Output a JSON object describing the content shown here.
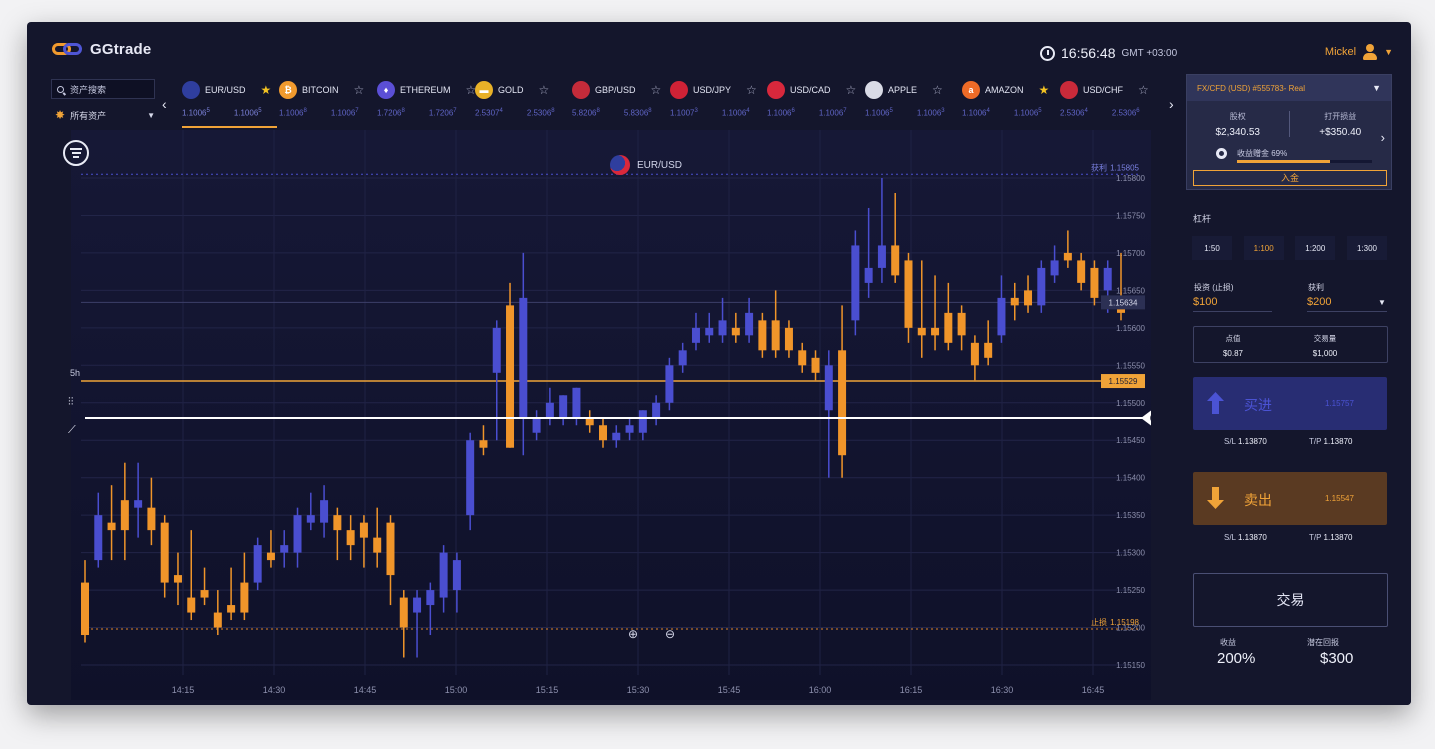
{
  "app": {
    "name": "GGtrade"
  },
  "header": {
    "time": "16:56:48",
    "timezone": "GMT +03:00",
    "username": "Mickel"
  },
  "sidebar": {
    "search_placeholder": "资产搜索",
    "all_assets": "所有资产"
  },
  "tickers": [
    {
      "name": "EUR/USD",
      "icon_color": "#2f3e9e",
      "icon_letter": "",
      "favorite": true,
      "prices": [
        "1.1006",
        "1.1006"
      ],
      "sups": [
        "5",
        "5"
      ],
      "active": true
    },
    {
      "name": "BITCOIN",
      "icon_color": "#f19a2e",
      "icon_letter": "₿",
      "favorite": false,
      "prices": [
        "1.1006",
        "1.1006"
      ],
      "sups": [
        "8",
        "7"
      ]
    },
    {
      "name": "ETHEREUM",
      "icon_color": "#5b4fd6",
      "icon_letter": "♦",
      "favorite": false,
      "prices": [
        "1.7206",
        "1.7206"
      ],
      "sups": [
        "8",
        "7"
      ]
    },
    {
      "name": "GOLD",
      "icon_color": "#e8b128",
      "icon_letter": "▬",
      "favorite": false,
      "prices": [
        "2.5307",
        "2.5306"
      ],
      "sups": [
        "4",
        "8"
      ]
    },
    {
      "name": "GBP/USD",
      "icon_color": "#c42b3a",
      "icon_letter": "",
      "favorite": false,
      "prices": [
        "5.8206",
        "5.8306"
      ],
      "sups": [
        "8",
        "8"
      ]
    },
    {
      "name": "USD/JPY",
      "icon_color": "#cf2236",
      "icon_letter": "",
      "favorite": false,
      "prices": [
        "1.1007",
        "1.1006"
      ],
      "sups": [
        "3",
        "4"
      ]
    },
    {
      "name": "USD/CAD",
      "icon_color": "#d7283c",
      "icon_letter": "",
      "favorite": false,
      "prices": [
        "1.1006",
        "1.1006"
      ],
      "sups": [
        "6",
        "7"
      ]
    },
    {
      "name": "APPLE",
      "icon_color": "#d9dbe6",
      "icon_letter": "",
      "favorite": false,
      "prices": [
        "1.1006",
        "1.1006"
      ],
      "sups": [
        "5",
        "3"
      ]
    },
    {
      "name": "AMAZON",
      "icon_color": "#ee6b27",
      "icon_letter": "a",
      "favorite": true,
      "prices": [
        "1.1006",
        "1.1006"
      ],
      "sups": [
        "4",
        "5"
      ]
    },
    {
      "name": "USD/CHF",
      "icon_color": "#c92a3a",
      "icon_letter": "",
      "favorite": false,
      "prices": [
        "2.5306",
        "2.5306"
      ],
      "sups": [
        "4",
        "6"
      ]
    }
  ],
  "chart": {
    "symbol": "EUR/USD",
    "timeframe": "5h",
    "take_profit_label": "获利",
    "take_profit_value": "1.15805",
    "stop_loss_label": "止损",
    "stop_loss_value": "1.15198",
    "current_price_tag": "1.15634",
    "orange_line_value": "1.15529"
  },
  "chart_data": {
    "type": "candlestick",
    "yticks": [
      "1.15800",
      "1.15750",
      "1.15700",
      "1.15650",
      "1.15600",
      "1.15550",
      "1.15500",
      "1.15450",
      "1.15400",
      "1.15350",
      "1.15300",
      "1.15250",
      "1.15200",
      "1.15150"
    ],
    "ylim": [
      1.1513,
      1.1582
    ],
    "xticks": [
      "14:15",
      "14:30",
      "14:45",
      "15:00",
      "15:15",
      "15:30",
      "15:45",
      "16:00",
      "16:15",
      "16:30",
      "16:45"
    ],
    "up_color": "#4a4ed0",
    "down_color": "#f0952a",
    "candles": [
      {
        "o": 1.1526,
        "c": 1.1519,
        "h": 1.1529,
        "l": 1.1518
      },
      {
        "o": 1.1529,
        "c": 1.1535,
        "h": 1.1538,
        "l": 1.1528
      },
      {
        "o": 1.1534,
        "c": 1.1533,
        "h": 1.1539,
        "l": 1.1529
      },
      {
        "o": 1.1537,
        "c": 1.1533,
        "h": 1.1542,
        "l": 1.1529
      },
      {
        "o": 1.1536,
        "c": 1.1537,
        "h": 1.1542,
        "l": 1.1532
      },
      {
        "o": 1.1536,
        "c": 1.1533,
        "h": 1.154,
        "l": 1.1531
      },
      {
        "o": 1.1534,
        "c": 1.1526,
        "h": 1.1535,
        "l": 1.1524
      },
      {
        "o": 1.1527,
        "c": 1.1526,
        "h": 1.153,
        "l": 1.1523
      },
      {
        "o": 1.1524,
        "c": 1.1522,
        "h": 1.1533,
        "l": 1.1521
      },
      {
        "o": 1.1525,
        "c": 1.1524,
        "h": 1.1528,
        "l": 1.1523
      },
      {
        "o": 1.1522,
        "c": 1.152,
        "h": 1.1525,
        "l": 1.1519
      },
      {
        "o": 1.1523,
        "c": 1.1522,
        "h": 1.1528,
        "l": 1.1521
      },
      {
        "o": 1.1526,
        "c": 1.1522,
        "h": 1.153,
        "l": 1.1521
      },
      {
        "o": 1.1526,
        "c": 1.1531,
        "h": 1.1532,
        "l": 1.1525
      },
      {
        "o": 1.153,
        "c": 1.1529,
        "h": 1.1533,
        "l": 1.1528
      },
      {
        "o": 1.153,
        "c": 1.1531,
        "h": 1.1533,
        "l": 1.1528
      },
      {
        "o": 1.153,
        "c": 1.1535,
        "h": 1.1536,
        "l": 1.1528
      },
      {
        "o": 1.1534,
        "c": 1.1535,
        "h": 1.1538,
        "l": 1.1533
      },
      {
        "o": 1.1534,
        "c": 1.1537,
        "h": 1.1539,
        "l": 1.1532
      },
      {
        "o": 1.1535,
        "c": 1.1533,
        "h": 1.1536,
        "l": 1.1529
      },
      {
        "o": 1.1533,
        "c": 1.1531,
        "h": 1.1535,
        "l": 1.1529
      },
      {
        "o": 1.1534,
        "c": 1.1532,
        "h": 1.1535,
        "l": 1.1528
      },
      {
        "o": 1.1532,
        "c": 1.153,
        "h": 1.1536,
        "l": 1.1528
      },
      {
        "o": 1.1534,
        "c": 1.1527,
        "h": 1.1535,
        "l": 1.1523
      },
      {
        "o": 1.1524,
        "c": 1.152,
        "h": 1.1525,
        "l": 1.1516
      },
      {
        "o": 1.1522,
        "c": 1.1524,
        "h": 1.1525,
        "l": 1.1516
      },
      {
        "o": 1.1523,
        "c": 1.1525,
        "h": 1.1526,
        "l": 1.1519
      },
      {
        "o": 1.1524,
        "c": 1.153,
        "h": 1.1531,
        "l": 1.1522
      },
      {
        "o": 1.1525,
        "c": 1.1529,
        "h": 1.153,
        "l": 1.1522
      },
      {
        "o": 1.1535,
        "c": 1.1545,
        "h": 1.1546,
        "l": 1.1533
      },
      {
        "o": 1.1545,
        "c": 1.1544,
        "h": 1.1547,
        "l": 1.1543
      },
      {
        "o": 1.1554,
        "c": 1.156,
        "h": 1.1561,
        "l": 1.1545
      },
      {
        "o": 1.1563,
        "c": 1.1544,
        "h": 1.1566,
        "l": 1.1544
      },
      {
        "o": 1.1548,
        "c": 1.1564,
        "h": 1.157,
        "l": 1.1543
      },
      {
        "o": 1.1546,
        "c": 1.1548,
        "h": 1.1549,
        "l": 1.1545
      },
      {
        "o": 1.1548,
        "c": 1.155,
        "h": 1.1552,
        "l": 1.1547
      },
      {
        "o": 1.1548,
        "c": 1.1551,
        "h": 1.1551,
        "l": 1.1547
      },
      {
        "o": 1.1548,
        "c": 1.1552,
        "h": 1.1552,
        "l": 1.1547
      },
      {
        "o": 1.1548,
        "c": 1.1547,
        "h": 1.1549,
        "l": 1.1546
      },
      {
        "o": 1.1547,
        "c": 1.1545,
        "h": 1.1548,
        "l": 1.1544
      },
      {
        "o": 1.1545,
        "c": 1.1546,
        "h": 1.1547,
        "l": 1.1544
      },
      {
        "o": 1.1546,
        "c": 1.1547,
        "h": 1.1548,
        "l": 1.1545
      },
      {
        "o": 1.1546,
        "c": 1.1549,
        "h": 1.1549,
        "l": 1.1545
      },
      {
        "o": 1.1548,
        "c": 1.155,
        "h": 1.1551,
        "l": 1.1547
      },
      {
        "o": 1.155,
        "c": 1.1555,
        "h": 1.1556,
        "l": 1.1549
      },
      {
        "o": 1.1555,
        "c": 1.1557,
        "h": 1.1558,
        "l": 1.1554
      },
      {
        "o": 1.1558,
        "c": 1.156,
        "h": 1.1562,
        "l": 1.1557
      },
      {
        "o": 1.1559,
        "c": 1.156,
        "h": 1.1562,
        "l": 1.1558
      },
      {
        "o": 1.1559,
        "c": 1.1561,
        "h": 1.1564,
        "l": 1.1558
      },
      {
        "o": 1.156,
        "c": 1.1559,
        "h": 1.1562,
        "l": 1.1558
      },
      {
        "o": 1.1559,
        "c": 1.1562,
        "h": 1.1564,
        "l": 1.1558
      },
      {
        "o": 1.1561,
        "c": 1.1557,
        "h": 1.1562,
        "l": 1.1556
      },
      {
        "o": 1.1561,
        "c": 1.1557,
        "h": 1.1565,
        "l": 1.1556
      },
      {
        "o": 1.156,
        "c": 1.1557,
        "h": 1.1561,
        "l": 1.1556
      },
      {
        "o": 1.1557,
        "c": 1.1555,
        "h": 1.1558,
        "l": 1.1554
      },
      {
        "o": 1.1556,
        "c": 1.1554,
        "h": 1.1557,
        "l": 1.1553
      },
      {
        "o": 1.1549,
        "c": 1.1555,
        "h": 1.1557,
        "l": 1.154
      },
      {
        "o": 1.1557,
        "c": 1.1543,
        "h": 1.1563,
        "l": 1.154
      },
      {
        "o": 1.1561,
        "c": 1.1571,
        "h": 1.1573,
        "l": 1.1559
      },
      {
        "o": 1.1566,
        "c": 1.1568,
        "h": 1.1576,
        "l": 1.1564
      },
      {
        "o": 1.1568,
        "c": 1.1571,
        "h": 1.158,
        "l": 1.1566
      },
      {
        "o": 1.1571,
        "c": 1.1567,
        "h": 1.1578,
        "l": 1.1566
      },
      {
        "o": 1.1569,
        "c": 1.156,
        "h": 1.157,
        "l": 1.1558
      },
      {
        "o": 1.156,
        "c": 1.1559,
        "h": 1.1569,
        "l": 1.1556
      },
      {
        "o": 1.156,
        "c": 1.1559,
        "h": 1.1567,
        "l": 1.1557
      },
      {
        "o": 1.1562,
        "c": 1.1558,
        "h": 1.1566,
        "l": 1.1557
      },
      {
        "o": 1.1562,
        "c": 1.1559,
        "h": 1.1563,
        "l": 1.1557
      },
      {
        "o": 1.1558,
        "c": 1.1555,
        "h": 1.1559,
        "l": 1.1553
      },
      {
        "o": 1.1558,
        "c": 1.1556,
        "h": 1.1561,
        "l": 1.1555
      },
      {
        "o": 1.1559,
        "c": 1.1564,
        "h": 1.1567,
        "l": 1.1558
      },
      {
        "o": 1.1564,
        "c": 1.1563,
        "h": 1.1566,
        "l": 1.1561
      },
      {
        "o": 1.1565,
        "c": 1.1563,
        "h": 1.1567,
        "l": 1.1562
      },
      {
        "o": 1.1563,
        "c": 1.1568,
        "h": 1.1569,
        "l": 1.1562
      },
      {
        "o": 1.1567,
        "c": 1.1569,
        "h": 1.1571,
        "l": 1.1566
      },
      {
        "o": 1.157,
        "c": 1.1569,
        "h": 1.1573,
        "l": 1.1568
      },
      {
        "o": 1.1569,
        "c": 1.1566,
        "h": 1.157,
        "l": 1.1565
      },
      {
        "o": 1.1568,
        "c": 1.1564,
        "h": 1.1569,
        "l": 1.1563
      },
      {
        "o": 1.1565,
        "c": 1.1568,
        "h": 1.1569,
        "l": 1.1562
      },
      {
        "o": 1.1564,
        "c": 1.1562,
        "h": 1.157,
        "l": 1.1561
      }
    ]
  },
  "account": {
    "label": "FX/CFD (USD) #555783- Real",
    "equity_label": "股权",
    "equity_value": "$2,340.53",
    "pnl_label": "打开损益",
    "pnl_value": "+$350.40",
    "bonus_label": "收益赠金 69%",
    "bonus_percent": 69,
    "deposit_label": "入金"
  },
  "trade": {
    "leverage_label": "杠杆",
    "leverage_options": [
      "1:50",
      "1:100",
      "1:200",
      "1:300"
    ],
    "selected_leverage": "1:100",
    "invest_label": "投资 (止损)",
    "invest_value": "$100",
    "profit_label": "获利",
    "profit_value": "$200",
    "pip_value_label": "点值",
    "pip_value": "$0.87",
    "volume_label": "交易量",
    "volume_value": "$1,000",
    "buy_label": "买进",
    "buy_price": "1.15757",
    "buy_sl_label": "S/L",
    "buy_sl_value": "1.13870",
    "buy_tp_label": "T/P",
    "buy_tp_value": "1.13870",
    "sell_label": "卖出",
    "sell_price": "1.15547",
    "sell_sl_label": "S/L",
    "sell_sl_value": "1.13870",
    "sell_tp_label": "T/P",
    "sell_tp_value": "1.13870",
    "trade_button": "交易",
    "yield_label": "收益",
    "yield_value": "200%",
    "potential_label": "潜在回报",
    "potential_value": "$300"
  }
}
